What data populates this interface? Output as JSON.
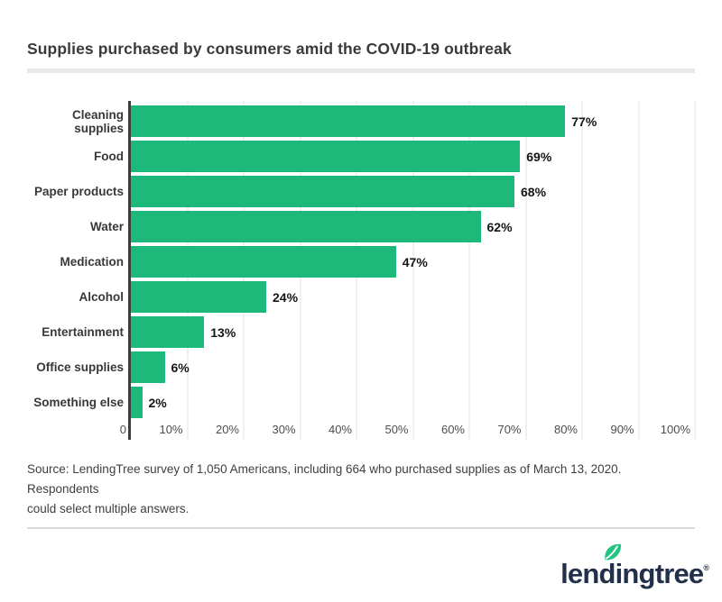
{
  "title": "Supplies purchased by consumers amid the COVID-19 outbreak",
  "source": {
    "lines": [
      "Source: LendingTree survey of 1,050 Americans, including 664 who purchased supplies as of March 13, 2020. Respondents",
      "could select multiple answers."
    ]
  },
  "logo": {
    "text": "lendingtree",
    "registered_mark": "®"
  },
  "colors": {
    "bar_green": "#1cb97a",
    "leaf_green": "#25c482",
    "logo_navy": "#22304a",
    "axis_dark": "#3d3d3d",
    "gridline": "#e1e1e1",
    "divider": "#e9e9e9"
  },
  "chart_data": {
    "type": "bar",
    "orientation": "horizontal",
    "title": "Supplies purchased by consumers amid the COVID-19 outbreak",
    "categories": [
      "Cleaning supplies",
      "Food",
      "Paper products",
      "Water",
      "Medication",
      "Alcohol",
      "Entertainment",
      "Office supplies",
      "Something else"
    ],
    "values": [
      77,
      69,
      68,
      62,
      47,
      24,
      13,
      6,
      2
    ],
    "value_labels": [
      "77%",
      "69%",
      "68%",
      "62%",
      "47%",
      "24%",
      "13%",
      "6%",
      "2%"
    ],
    "x_ticks": [
      "0",
      "10%",
      "20%",
      "30%",
      "40%",
      "50%",
      "60%",
      "70%",
      "80%",
      "90%",
      "100%"
    ],
    "xlim": [
      0,
      100
    ],
    "xlabel": "",
    "ylabel": "",
    "grid": true,
    "legend": false
  }
}
